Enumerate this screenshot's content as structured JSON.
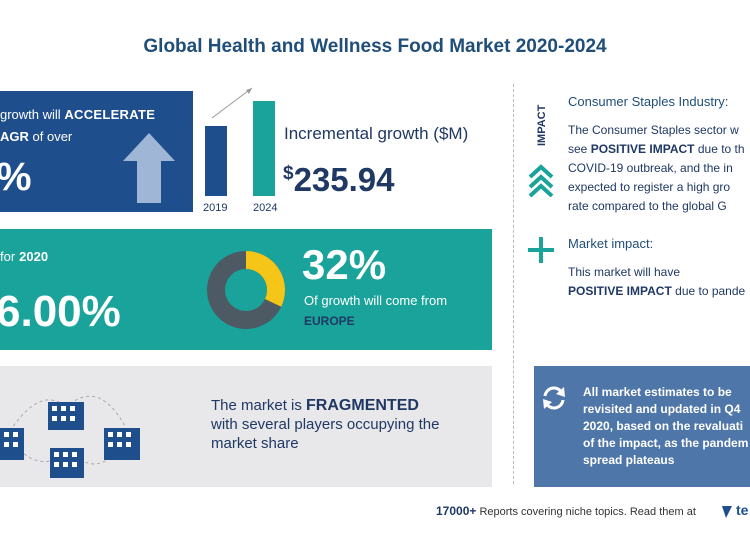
{
  "title": "Global Health and Wellness Food Market 2020-2024",
  "growth_panel": {
    "line1_prefix": "growth will",
    "line1_emphasis": "ACCELERATE",
    "line2_emphasis": "AGR",
    "line2_suffix": "of over",
    "big_value": "%"
  },
  "bar_chart": {
    "years": [
      "2019",
      "2024"
    ],
    "colors": {
      "y2019": "#1f4e8c",
      "y2024": "#1aa39a"
    }
  },
  "incremental": {
    "label": "Incremental growth ($M)",
    "currency": "$",
    "value": "235.94"
  },
  "teal_panel": {
    "yoy_label": "for",
    "yoy_year": "2020",
    "yoy_value": "6.00%",
    "share_pct": "32%",
    "share_text": "Of growth will come from",
    "region": "EUROPE",
    "donut_share": 0.32
  },
  "fragmented": {
    "prefix": "The market is",
    "emphasis": "FRAGMENTED",
    "line2": "with several players occupying the",
    "line3": "market share"
  },
  "impact": {
    "vertical_label": "IMPACT",
    "consumer_title": "Consumer Staples Industry:",
    "consumer_lines": [
      "The Consumer Staples sector w",
      "see",
      "POSITIVE IMPACT",
      "due to th",
      "COVID-19 outbreak, and the in",
      "expected to register a high gro",
      "rate compared to the global G"
    ],
    "market_title": "Market impact:",
    "market_line1": "This market will have",
    "market_emphasis": "POSITIVE IMPACT",
    "market_suffix": "due to pande"
  },
  "estimates": {
    "lines": [
      "All market estimates to be",
      "revisited and updated in Q4",
      "2020, based on the revaluati",
      "of the impact, as the pandem",
      "spread plateaus"
    ]
  },
  "footer": {
    "count": "17000+",
    "text": "Reports covering niche topics. Read them at",
    "brand": "te"
  },
  "colors": {
    "navy": "#1f4e8c",
    "teal": "#1aa39a",
    "gray_panel": "#e8e8ea",
    "slate_panel": "#4f76a8",
    "donut_accent": "#f5c518"
  }
}
